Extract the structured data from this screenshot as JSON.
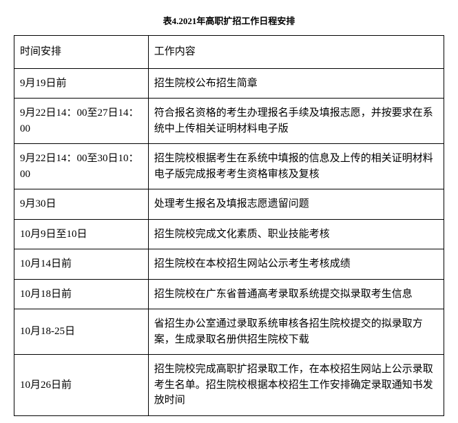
{
  "title": "表4.2021年高职扩招工作日程安排",
  "headers": {
    "time": "时间安排",
    "content": "工作内容"
  },
  "rows": [
    {
      "time": "9月19日前",
      "content": "招生院校公布招生简章"
    },
    {
      "time": "9月22日14：00至27日14：00",
      "content": "符合报名资格的考生办理报名手续及填报志愿，并按要求在系统中上传相关证明材料电子版"
    },
    {
      "time": "9月22日14：00至30日10：00",
      "content": "招生院校根据考生在系统中填报的信息及上传的相关证明材料电子版完成报考考生资格审核及复核"
    },
    {
      "time": "9月30日",
      "content": "处理考生报名及填报志愿遗留问题"
    },
    {
      "time": "10月9日至10日",
      "content": "招生院校完成文化素质、职业技能考核"
    },
    {
      "time": "10月14日前",
      "content": "招生院校在本校招生网站公示考生考核成绩"
    },
    {
      "time": "10月18日前",
      "content": "招生院校在广东省普通高考录取系统提交拟录取考生信息"
    },
    {
      "time": "10月18-25日",
      "content": "省招生办公室通过录取系统审核各招生院校提交的拟录取方案，生成录取名册供招生院校下载"
    },
    {
      "time": "10月26日前",
      "content": "招生院校完成高职扩招录取工作，在本校招生网站上公示录取考生名单。招生院校根据本校招生工作安排确定录取通知书发放时间"
    }
  ]
}
